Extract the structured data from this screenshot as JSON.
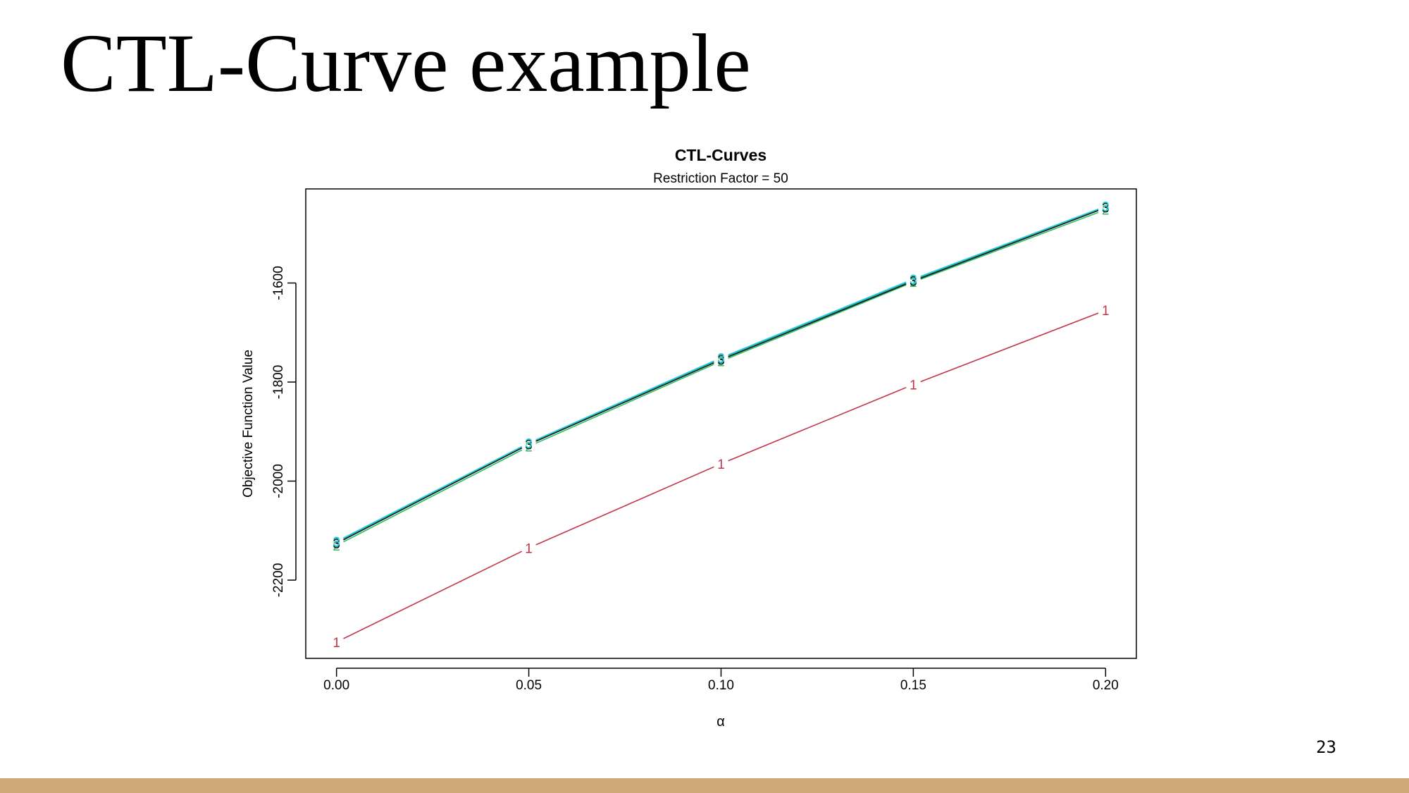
{
  "slide": {
    "title": "CTL-Curve example",
    "page_number": "23",
    "footer_color": "#cfa978"
  },
  "chart_data": {
    "type": "line",
    "title": "CTL-Curves",
    "subtitle": "Restriction Factor = 50",
    "xlabel": "α",
    "ylabel": "Objective Function Value",
    "x": [
      0.0,
      0.05,
      0.1,
      0.15,
      0.2
    ],
    "x_tick_labels": [
      "0.00",
      "0.05",
      "0.10",
      "0.15",
      "0.20"
    ],
    "y_ticks": [
      -2200,
      -2000,
      -1800,
      -1600
    ],
    "y_tick_labels": [
      "-2200",
      "-2000",
      "-1800",
      "-1600"
    ],
    "xlim": [
      -0.008,
      0.208
    ],
    "ylim": [
      -2358,
      -1410
    ],
    "grid": false,
    "legend": "none",
    "series": [
      {
        "marker": "1",
        "color": "#c0354a",
        "values": [
          -2325,
          -2135,
          -1965,
          -1805,
          -1655
        ]
      },
      {
        "marker": "2",
        "color": "#2fbf66",
        "values": [
          -2130,
          -1930,
          -1758,
          -1598,
          -1452
        ]
      },
      {
        "marker": "3",
        "color": "#1a9fa3",
        "values": [
          -2124,
          -1925,
          -1753,
          -1594,
          -1446
        ]
      },
      {
        "marker": "3",
        "color": "#1a1a1a",
        "values": [
          -2126,
          -1926,
          -1755,
          -1596,
          -1448
        ]
      },
      {
        "marker": "3",
        "color": "#2bd0e0",
        "values": [
          -2122,
          -1923,
          -1751,
          -1592,
          -1445
        ]
      }
    ]
  }
}
